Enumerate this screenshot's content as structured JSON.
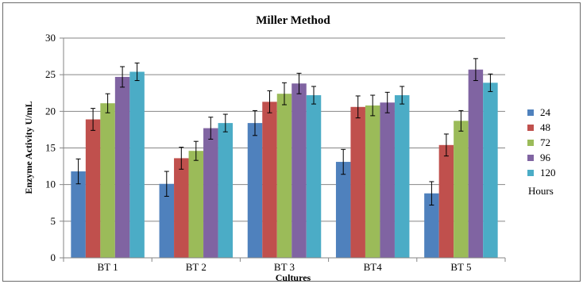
{
  "chart_data": {
    "type": "bar",
    "title": "Miller Method",
    "xlabel": "Cultures",
    "ylabel": "Enzyme Activity U/mL",
    "categories": [
      "BT 1",
      "BT 2",
      "BT 3",
      "BT4",
      "BT 5"
    ],
    "ylim": [
      0,
      30
    ],
    "yticks": [
      0,
      5,
      10,
      15,
      20,
      25,
      30
    ],
    "grid": "horizontal",
    "legend_position": "right",
    "legend_title": "Hours",
    "error_bars": true,
    "series": [
      {
        "name": "24",
        "color": "#4F81BD",
        "values": [
          11.8,
          10.1,
          18.4,
          13.1,
          8.8
        ],
        "errors": [
          1.7,
          1.7,
          1.7,
          1.7,
          1.6
        ]
      },
      {
        "name": "48",
        "color": "#C0504D",
        "values": [
          18.9,
          13.6,
          21.3,
          20.6,
          15.4
        ],
        "errors": [
          1.5,
          1.5,
          1.5,
          1.5,
          1.5
        ]
      },
      {
        "name": "72",
        "color": "#9BBB59",
        "values": [
          21.1,
          14.6,
          22.4,
          20.8,
          18.7
        ],
        "errors": [
          1.3,
          1.3,
          1.5,
          1.4,
          1.4
        ]
      },
      {
        "name": "96",
        "color": "#8064A2",
        "values": [
          24.7,
          17.7,
          23.8,
          21.2,
          25.7
        ],
        "errors": [
          1.4,
          1.5,
          1.4,
          1.4,
          1.5
        ]
      },
      {
        "name": "120",
        "color": "#4BACC6",
        "values": [
          25.4,
          18.4,
          22.2,
          22.2,
          23.9
        ],
        "errors": [
          1.2,
          1.2,
          1.2,
          1.2,
          1.2
        ]
      }
    ]
  }
}
